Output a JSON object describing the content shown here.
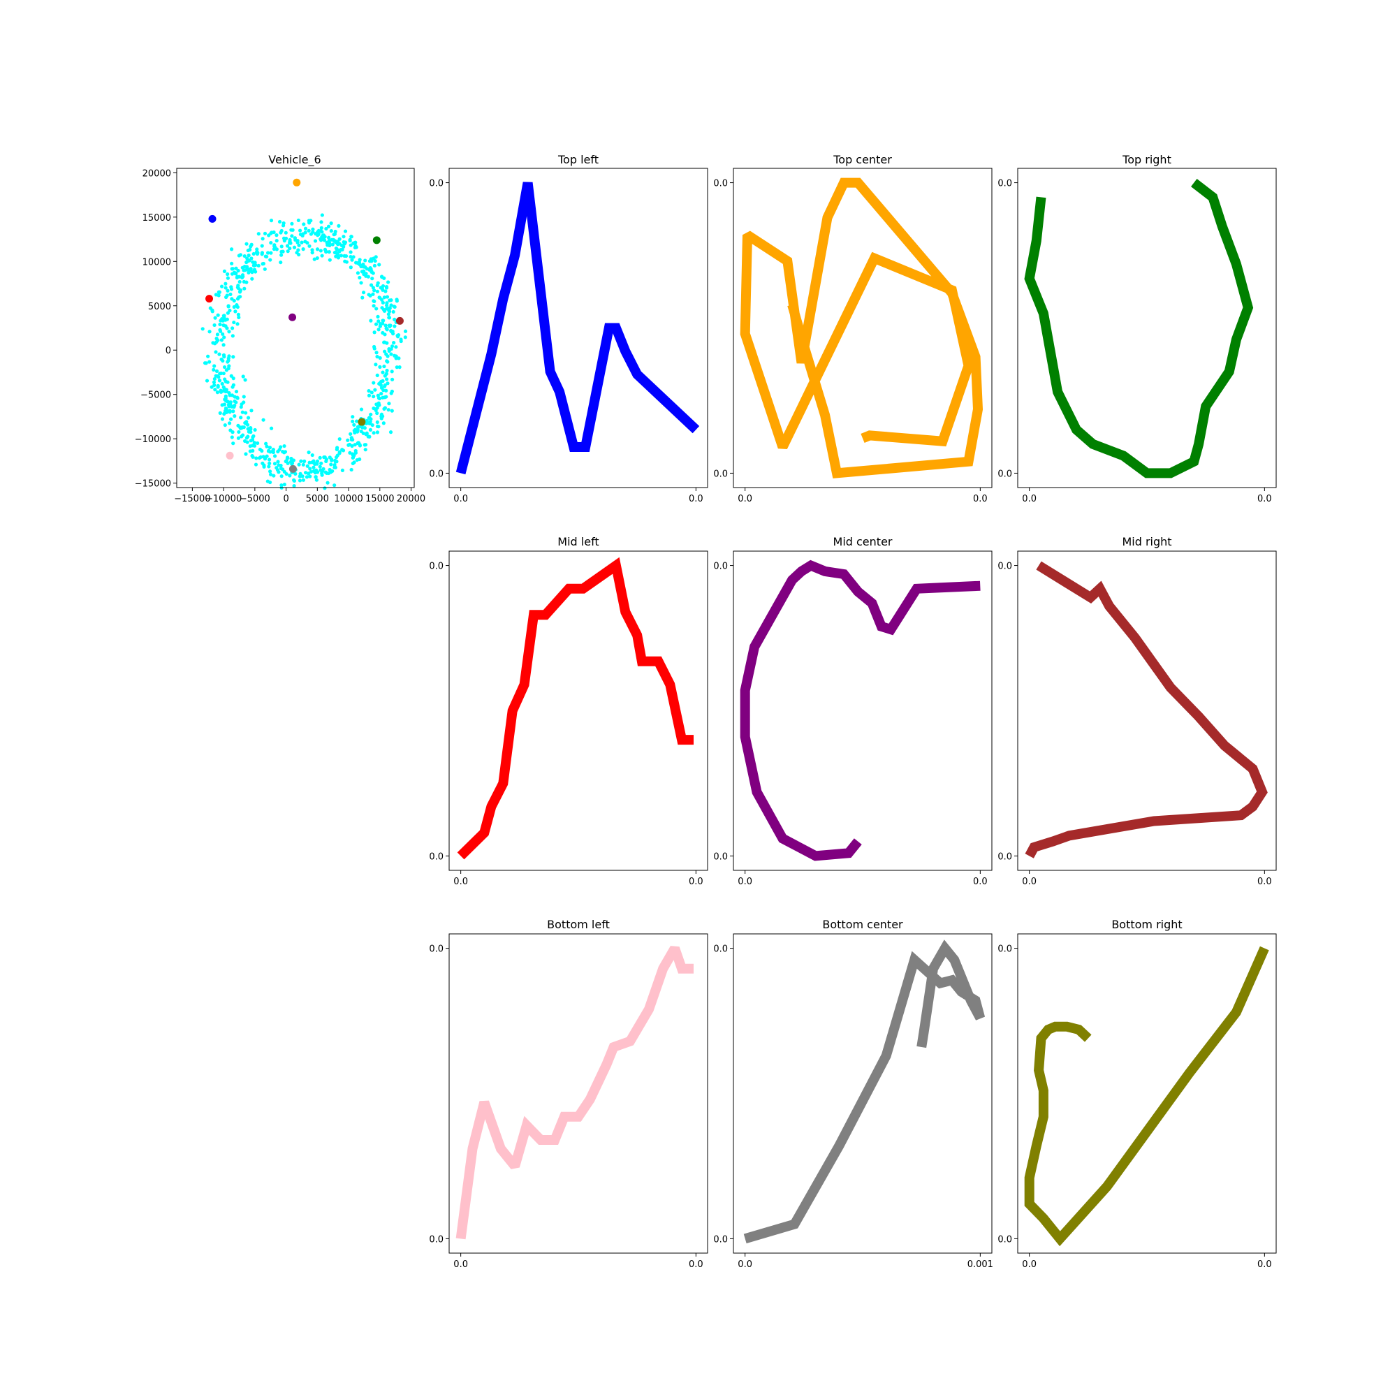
{
  "chart_data": [
    {
      "type": "scatter",
      "title": "Vehicle_6",
      "xlabel": "",
      "ylabel": "",
      "xlim": [
        -17500,
        20500
      ],
      "ylim": [
        -15500,
        20500
      ],
      "xticks": [
        -15000,
        -10000,
        -5000,
        0,
        5000,
        10000,
        15000,
        20000
      ],
      "xtick_labels": [
        "−15000",
        "−10000",
        "−5000",
        "0",
        "5000",
        "10000",
        "15000",
        "20000"
      ],
      "yticks": [
        -15000,
        -10000,
        -5000,
        0,
        5000,
        10000,
        15000,
        20000
      ],
      "ytick_labels": [
        "−15000",
        "−10000",
        "−5000",
        "0",
        "5000",
        "10000",
        "15000",
        "20000"
      ],
      "grid": false,
      "background_series": {
        "color": "#00ffff",
        "count": 900,
        "shape": "ring",
        "note_points_generated_by_script": true
      },
      "highlight_points": [
        {
          "x": 1700,
          "y": 18900,
          "color": "#ffa500"
        },
        {
          "x": -11800,
          "y": 14800,
          "color": "#0000ff"
        },
        {
          "x": 14500,
          "y": 12400,
          "color": "#008000"
        },
        {
          "x": -12300,
          "y": 5800,
          "color": "#ff0000"
        },
        {
          "x": 1000,
          "y": 3700,
          "color": "#800080"
        },
        {
          "x": 18200,
          "y": 3300,
          "color": "#a52a2a"
        },
        {
          "x": 12100,
          "y": -8100,
          "color": "#808000"
        },
        {
          "x": -9000,
          "y": -11900,
          "color": "#ffc0cb"
        },
        {
          "x": 1100,
          "y": -13400,
          "color": "#808080"
        }
      ]
    },
    {
      "type": "line",
      "title": "Top left",
      "color": "#0000ff",
      "xtick_labels": [
        "0.0",
        "0.0"
      ],
      "ytick_labels": [
        "0.0",
        "0.0"
      ],
      "x": [
        0,
        0.13,
        0.18,
        0.23,
        0.285,
        0.38,
        0.42,
        0.48,
        0.53,
        0.63,
        0.66,
        0.7,
        0.75,
        1.0
      ],
      "y": [
        0.0,
        0.41,
        0.6,
        0.75,
        1.0,
        0.35,
        0.28,
        0.09,
        0.09,
        0.5,
        0.5,
        0.42,
        0.34,
        0.15
      ]
    },
    {
      "type": "line",
      "title": "Top center",
      "color": "#ffa500",
      "xtick_labels": [
        "0.0",
        "0.0"
      ],
      "ytick_labels": [
        "0.0",
        "0.0"
      ],
      "x": [
        0.2,
        0.25,
        0.34,
        0.39,
        0.95,
        0.99,
        0.98,
        0.88,
        0.48,
        0.42,
        0.35,
        0.24,
        0.18,
        0.01,
        0.0,
        0.16,
        0.55,
        0.88,
        0.95,
        0.84,
        0.53,
        0.5
      ],
      "y": [
        0.58,
        0.44,
        0.2,
        0.0,
        0.04,
        0.22,
        0.4,
        0.62,
        1.0,
        1.0,
        0.88,
        0.38,
        0.73,
        0.82,
        0.48,
        0.09,
        0.74,
        0.63,
        0.37,
        0.11,
        0.13,
        0.12
      ]
    },
    {
      "type": "line",
      "title": "Top right",
      "color": "#008000",
      "xtick_labels": [
        "0.0",
        "0.0"
      ],
      "ytick_labels": [
        "0.0",
        "0.0"
      ],
      "x": [
        0.05,
        0.03,
        0.0,
        0.06,
        0.12,
        0.2,
        0.27,
        0.4,
        0.5,
        0.6,
        0.7,
        0.72,
        0.75,
        0.85,
        0.88,
        0.93,
        0.88,
        0.82,
        0.78,
        0.7
      ],
      "y": [
        0.95,
        0.8,
        0.67,
        0.55,
        0.28,
        0.15,
        0.1,
        0.06,
        0.0,
        0.0,
        0.04,
        0.1,
        0.23,
        0.35,
        0.46,
        0.57,
        0.72,
        0.85,
        0.95,
        1.0
      ]
    },
    {
      "type": "line",
      "title": "Mid left",
      "color": "#ff0000",
      "xtick_labels": [
        "0.0",
        "0.0"
      ],
      "ytick_labels": [
        "0.0",
        "0.0"
      ],
      "x": [
        0.0,
        0.1,
        0.13,
        0.18,
        0.22,
        0.27,
        0.31,
        0.36,
        0.46,
        0.52,
        0.66,
        0.7,
        0.75,
        0.77,
        0.84,
        0.89,
        0.94,
        0.99
      ],
      "y": [
        0.0,
        0.08,
        0.17,
        0.25,
        0.5,
        0.59,
        0.83,
        0.83,
        0.92,
        0.92,
        1.0,
        0.84,
        0.76,
        0.67,
        0.67,
        0.59,
        0.4,
        0.4
      ]
    },
    {
      "type": "line",
      "title": "Mid center",
      "color": "#800080",
      "xtick_labels": [
        "0.0",
        "0.0"
      ],
      "ytick_labels": [
        "0.0",
        "0.0"
      ],
      "x": [
        0.48,
        0.44,
        0.3,
        0.16,
        0.05,
        0.0,
        0.0,
        0.04,
        0.2,
        0.24,
        0.28,
        0.34,
        0.42,
        0.45,
        0.48,
        0.54,
        0.58,
        0.62,
        0.73,
        1.0
      ],
      "y": [
        0.05,
        0.01,
        0.0,
        0.06,
        0.22,
        0.41,
        0.57,
        0.72,
        0.95,
        0.98,
        1.0,
        0.98,
        0.97,
        0.94,
        0.91,
        0.87,
        0.79,
        0.78,
        0.92,
        0.93
      ]
    },
    {
      "type": "line",
      "title": "Mid right",
      "color": "#a52a2a",
      "xtick_labels": [
        "0.0",
        "0.0"
      ],
      "ytick_labels": [
        "0.0",
        "0.0"
      ],
      "x": [
        0.0,
        0.02,
        0.1,
        0.17,
        0.53,
        0.9,
        0.95,
        0.99,
        0.95,
        0.83,
        0.72,
        0.6,
        0.45,
        0.34,
        0.3,
        0.26,
        0.04
      ],
      "y": [
        0.0,
        0.03,
        0.05,
        0.07,
        0.12,
        0.14,
        0.17,
        0.22,
        0.3,
        0.38,
        0.48,
        0.58,
        0.75,
        0.86,
        0.92,
        0.89,
        1.0
      ]
    },
    {
      "type": "line",
      "title": "Bottom left",
      "color": "#ffc0cb",
      "xtick_labels": [
        "0.0",
        "0.0"
      ],
      "ytick_labels": [
        "0.0",
        "0.0"
      ],
      "x": [
        0.0,
        0.05,
        0.1,
        0.17,
        0.23,
        0.28,
        0.34,
        0.4,
        0.44,
        0.5,
        0.55,
        0.62,
        0.65,
        0.72,
        0.8,
        0.86,
        0.91,
        0.94,
        0.99
      ],
      "y": [
        0.0,
        0.31,
        0.47,
        0.31,
        0.25,
        0.39,
        0.34,
        0.34,
        0.42,
        0.42,
        0.48,
        0.6,
        0.66,
        0.68,
        0.79,
        0.93,
        1.0,
        0.93,
        0.93
      ]
    },
    {
      "type": "line",
      "title": "Bottom center",
      "color": "#808080",
      "xtick_labels": [
        "0.0",
        "0.001"
      ],
      "ytick_labels": [
        "0.0",
        "0.0"
      ],
      "x": [
        0.0,
        0.21,
        0.4,
        0.6,
        0.72,
        0.83,
        0.88,
        0.92,
        0.98,
        1.0,
        1.0,
        0.96,
        0.93,
        0.89,
        0.85,
        0.8,
        0.76,
        0.75
      ],
      "y": [
        0.0,
        0.05,
        0.32,
        0.63,
        0.96,
        0.88,
        0.89,
        0.85,
        0.82,
        0.76,
        0.76,
        0.82,
        0.88,
        0.96,
        1.0,
        0.93,
        0.71,
        0.66
      ]
    },
    {
      "type": "line",
      "title": "Bottom right",
      "color": "#808000",
      "xtick_labels": [
        "0.0",
        "0.0"
      ],
      "ytick_labels": [
        "0.0",
        "0.0"
      ],
      "x": [
        0.25,
        0.21,
        0.16,
        0.11,
        0.08,
        0.05,
        0.04,
        0.06,
        0.06,
        0.03,
        0.0,
        0.0,
        0.06,
        0.13,
        0.33,
        0.68,
        0.88,
        1.0
      ],
      "y": [
        0.69,
        0.72,
        0.73,
        0.73,
        0.72,
        0.69,
        0.58,
        0.51,
        0.42,
        0.32,
        0.21,
        0.12,
        0.07,
        0.0,
        0.18,
        0.57,
        0.78,
        1.0
      ]
    }
  ]
}
